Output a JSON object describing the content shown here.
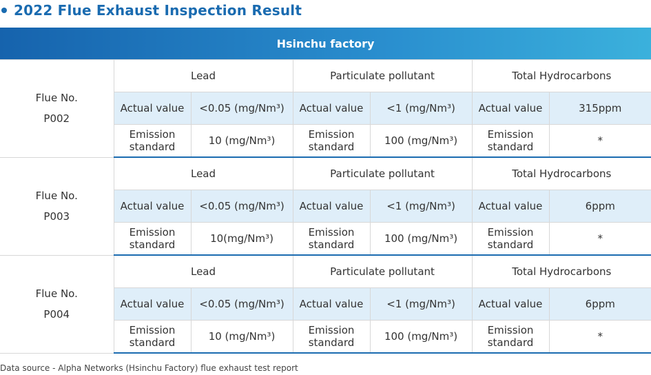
{
  "title": "2022 Flue Exhaust Inspection Result",
  "factory": "Hsinchu factory",
  "labels": {
    "flue_no": "Flue No.",
    "lead": "Lead",
    "particulate": "Particulate pollutant",
    "hydrocarbons": "Total Hydrocarbons",
    "actual": "Actual value",
    "emission": "Emission",
    "standard": "standard"
  },
  "groups": [
    {
      "flue": "P002",
      "lead_actual": "<0.05 (mg/Nm³)",
      "lead_standard": "10 (mg/Nm³)",
      "part_actual": "<1 (mg/Nm³)",
      "part_standard": "100 (mg/Nm³)",
      "hc_actual": "315ppm",
      "hc_standard": "*"
    },
    {
      "flue": "P003",
      "lead_actual": "<0.05 (mg/Nm³)",
      "lead_standard": "10(mg/Nm³)",
      "part_actual": "<1 (mg/Nm³)",
      "part_standard": "100 (mg/Nm³)",
      "hc_actual": "6ppm",
      "hc_standard": "*"
    },
    {
      "flue": "P004",
      "lead_actual": "<0.05 (mg/Nm³)",
      "lead_standard": "10 (mg/Nm³)",
      "part_actual": "<1 (mg/Nm³)",
      "part_standard": "100 (mg/Nm³)",
      "hc_actual": "6ppm",
      "hc_standard": "*"
    }
  ],
  "footer": "Data source - Alpha Networks (Hsinchu Factory) flue exhaust test report",
  "colors": {
    "accent": "#1a6bb0",
    "header_start": "#1663ad",
    "header_end": "#3bb1dc",
    "shade": "#dfeef9"
  }
}
